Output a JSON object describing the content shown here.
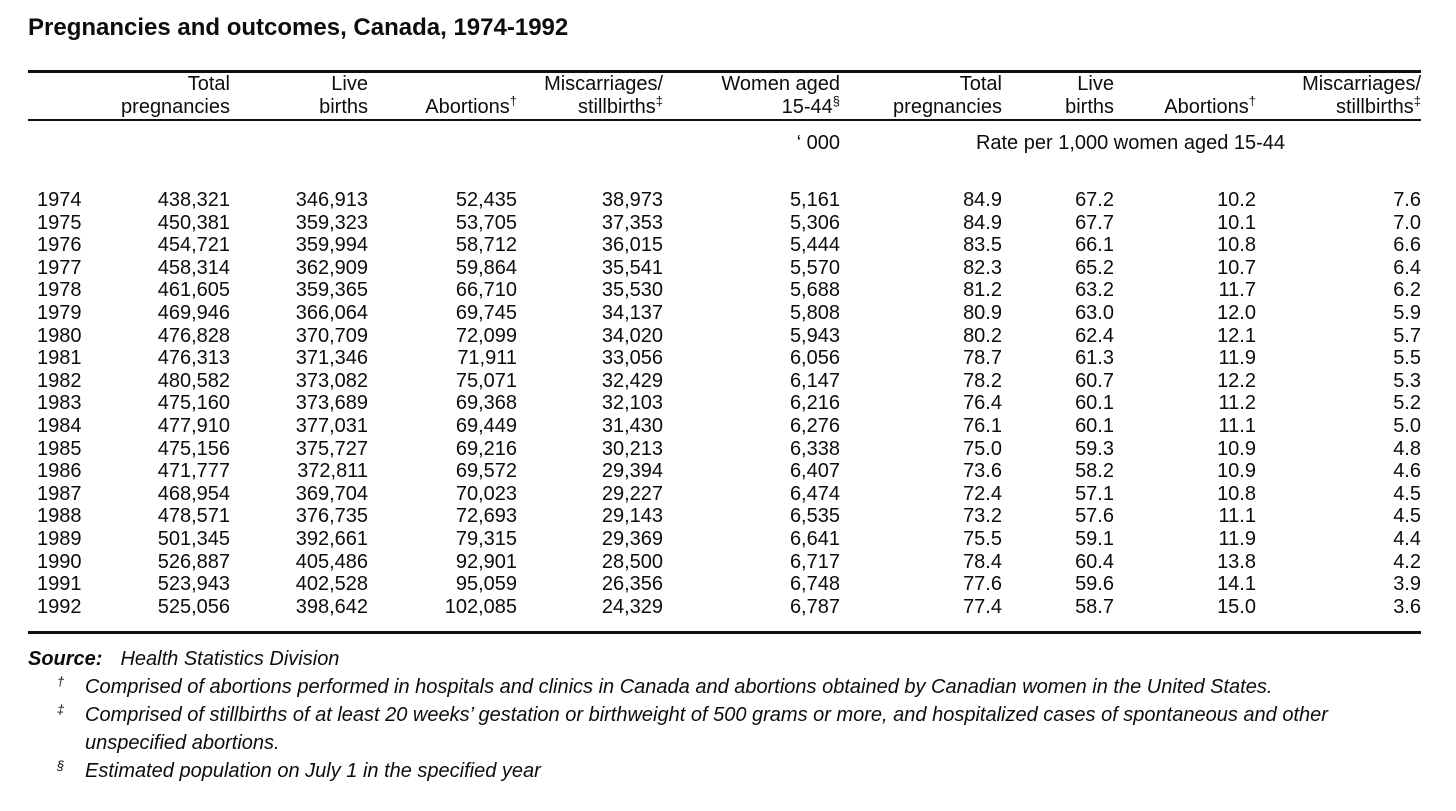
{
  "title": "Pregnancies and outcomes, Canada, 1974-1992",
  "table": {
    "columns": [
      {
        "lines": []
      },
      {
        "lines": [
          "Total",
          "pregnancies"
        ]
      },
      {
        "lines": [
          "Live",
          "births"
        ]
      },
      {
        "lines": [
          "Abortions"
        ],
        "sup": "†"
      },
      {
        "lines": [
          "Miscarriages/",
          "stillbirths"
        ],
        "sup": "‡"
      },
      {
        "lines": [
          "Women aged",
          "15-44"
        ],
        "sup": "§"
      },
      {
        "lines": [
          "Total",
          "pregnancies"
        ]
      },
      {
        "lines": [
          "Live",
          "births"
        ]
      },
      {
        "lines": [
          "Abortions"
        ],
        "sup": "†"
      },
      {
        "lines": [
          "Miscarriages/",
          "stillbirths"
        ],
        "sup": "‡"
      }
    ],
    "unit_women": "‘ 000",
    "unit_rates": "Rate per 1,000 women aged 15-44",
    "rows": [
      [
        "1974",
        "438,321",
        "346,913",
        "52,435",
        "38,973",
        "5,161",
        "84.9",
        "67.2",
        "10.2",
        "7.6"
      ],
      [
        "1975",
        "450,381",
        "359,323",
        "53,705",
        "37,353",
        "5,306",
        "84.9",
        "67.7",
        "10.1",
        "7.0"
      ],
      [
        "1976",
        "454,721",
        "359,994",
        "58,712",
        "36,015",
        "5,444",
        "83.5",
        "66.1",
        "10.8",
        "6.6"
      ],
      [
        "1977",
        "458,314",
        "362,909",
        "59,864",
        "35,541",
        "5,570",
        "82.3",
        "65.2",
        "10.7",
        "6.4"
      ],
      [
        "1978",
        "461,605",
        "359,365",
        "66,710",
        "35,530",
        "5,688",
        "81.2",
        "63.2",
        "11.7",
        "6.2"
      ],
      [
        "1979",
        "469,946",
        "366,064",
        "69,745",
        "34,137",
        "5,808",
        "80.9",
        "63.0",
        "12.0",
        "5.9"
      ],
      [
        "1980",
        "476,828",
        "370,709",
        "72,099",
        "34,020",
        "5,943",
        "80.2",
        "62.4",
        "12.1",
        "5.7"
      ],
      [
        "1981",
        "476,313",
        "371,346",
        "71,911",
        "33,056",
        "6,056",
        "78.7",
        "61.3",
        "11.9",
        "5.5"
      ],
      [
        "1982",
        "480,582",
        "373,082",
        "75,071",
        "32,429",
        "6,147",
        "78.2",
        "60.7",
        "12.2",
        "5.3"
      ],
      [
        "1983",
        "475,160",
        "373,689",
        "69,368",
        "32,103",
        "6,216",
        "76.4",
        "60.1",
        "11.2",
        "5.2"
      ],
      [
        "1984",
        "477,910",
        "377,031",
        "69,449",
        "31,430",
        "6,276",
        "76.1",
        "60.1",
        "11.1",
        "5.0"
      ],
      [
        "1985",
        "475,156",
        "375,727",
        "69,216",
        "30,213",
        "6,338",
        "75.0",
        "59.3",
        "10.9",
        "4.8"
      ],
      [
        "1986",
        "471,777",
        "372,811",
        "69,572",
        "29,394",
        "6,407",
        "73.6",
        "58.2",
        "10.9",
        "4.6"
      ],
      [
        "1987",
        "468,954",
        "369,704",
        "70,023",
        "29,227",
        "6,474",
        "72.4",
        "57.1",
        "10.8",
        "4.5"
      ],
      [
        "1988",
        "478,571",
        "376,735",
        "72,693",
        "29,143",
        "6,535",
        "73.2",
        "57.6",
        "11.1",
        "4.5"
      ],
      [
        "1989",
        "501,345",
        "392,661",
        "79,315",
        "29,369",
        "6,641",
        "75.5",
        "59.1",
        "11.9",
        "4.4"
      ],
      [
        "1990",
        "526,887",
        "405,486",
        "92,901",
        "28,500",
        "6,717",
        "78.4",
        "60.4",
        "13.8",
        "4.2"
      ],
      [
        "1991",
        "523,943",
        "402,528",
        "95,059",
        "26,356",
        "6,748",
        "77.6",
        "59.6",
        "14.1",
        "3.9"
      ],
      [
        "1992",
        "525,056",
        "398,642",
        "102,085",
        "24,329",
        "6,787",
        "77.4",
        "58.7",
        "15.0",
        "3.6"
      ]
    ]
  },
  "footnotes": {
    "source_label": "Source:",
    "source_text": "Health Statistics Division",
    "notes": [
      {
        "marker": "†",
        "text": "Comprised of abortions performed in hospitals and clinics in Canada and abortions obtained by Canadian women in the United States."
      },
      {
        "marker": "‡",
        "text": "Comprised of stillbirths of at least 20 weeks’ gestation or birthweight of 500 grams or more, and hospitalized cases of spontaneous and other unspecified abortions."
      },
      {
        "marker": "§",
        "text": "Estimated population on July 1 in the specified year"
      }
    ]
  }
}
